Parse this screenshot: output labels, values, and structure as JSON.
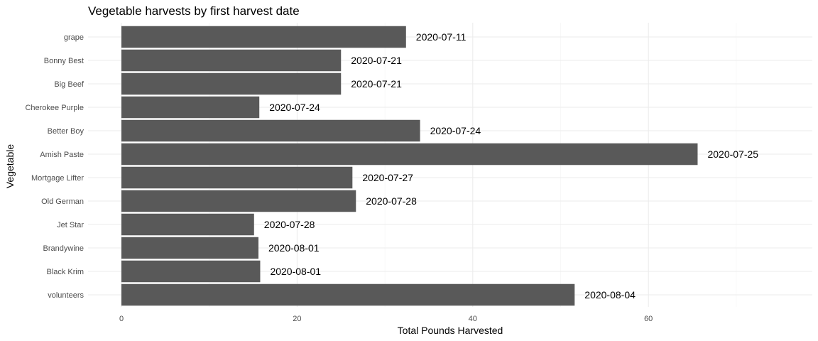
{
  "chart_data": {
    "type": "bar",
    "orientation": "horizontal",
    "title": "Vegetable harvests by first harvest date",
    "xlabel": "Total Pounds Harvested",
    "ylabel": "Vegetable",
    "xlim": [
      0,
      78
    ],
    "x_ticks": [
      0,
      20,
      40,
      60
    ],
    "grid": true,
    "bar_color": "#595959",
    "categories": [
      "grape",
      "Bonny Best",
      "Big Beef",
      "Cherokee Purple",
      "Better Boy",
      "Amish Paste",
      "Mortgage Lifter",
      "Old German",
      "Jet Star",
      "Brandywine",
      "Black Krim",
      "volunteers"
    ],
    "values": [
      32.4,
      25.0,
      25.0,
      15.7,
      34.0,
      65.6,
      26.3,
      26.7,
      15.1,
      15.6,
      15.8,
      51.6
    ],
    "data_labels": [
      "2020-07-11",
      "2020-07-21",
      "2020-07-21",
      "2020-07-24",
      "2020-07-24",
      "2020-07-25",
      "2020-07-27",
      "2020-07-28",
      "2020-07-28",
      "2020-08-01",
      "2020-08-01",
      "2020-08-04"
    ]
  }
}
